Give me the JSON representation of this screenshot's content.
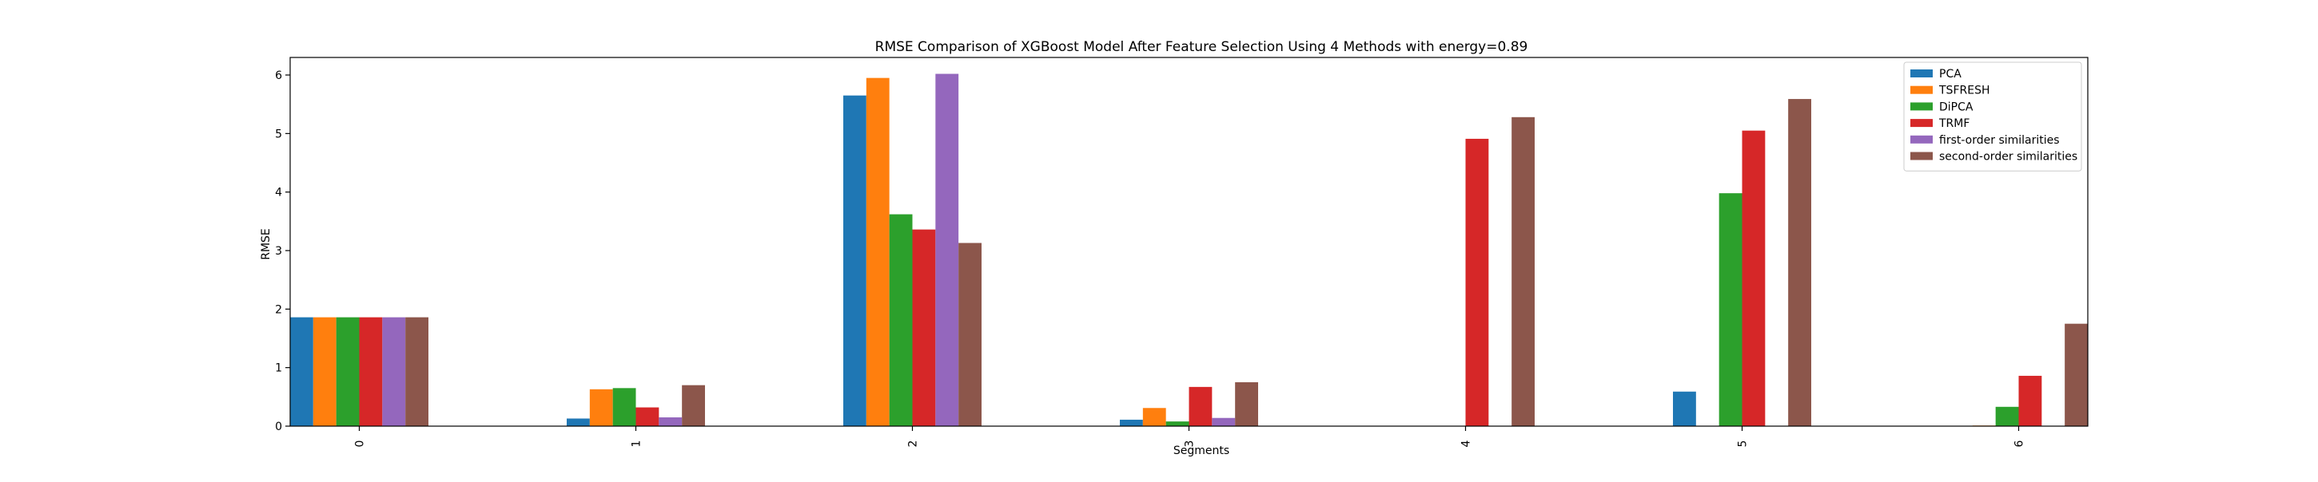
{
  "chart_data": {
    "type": "bar",
    "title": "RMSE Comparison of XGBoost Model After Feature Selection Using 4 Methods with energy=0.89",
    "xlabel": "Segments",
    "ylabel": "RMSE",
    "categories": [
      "0",
      "1",
      "2",
      "3",
      "4",
      "5",
      "6"
    ],
    "ylim": [
      0,
      6.3
    ],
    "yticks": [
      0,
      1,
      2,
      3,
      4,
      5,
      6
    ],
    "grid": false,
    "legend_position": "upper right",
    "series": [
      {
        "name": "PCA",
        "color": "#1f77b4",
        "values": [
          1.86,
          0.13,
          5.65,
          0.11,
          0.0,
          0.59,
          0.0
        ]
      },
      {
        "name": "TSFRESH",
        "color": "#ff7f0e",
        "values": [
          1.86,
          0.63,
          5.95,
          0.31,
          0.0,
          0.0,
          0.01
        ]
      },
      {
        "name": "DiPCA",
        "color": "#2ca02c",
        "values": [
          1.86,
          0.65,
          3.62,
          0.08,
          0.0,
          3.98,
          0.33
        ]
      },
      {
        "name": "TRMF",
        "color": "#d62728",
        "values": [
          1.86,
          0.32,
          3.36,
          0.67,
          4.91,
          5.05,
          0.86
        ]
      },
      {
        "name": "first-order similarities",
        "color": "#9467bd",
        "values": [
          1.86,
          0.15,
          6.02,
          0.14,
          0.0,
          0.0,
          0.0
        ]
      },
      {
        "name": "second-order similarities",
        "color": "#8c564b",
        "values": [
          1.86,
          0.7,
          3.13,
          0.75,
          5.28,
          5.59,
          1.75
        ]
      }
    ]
  }
}
